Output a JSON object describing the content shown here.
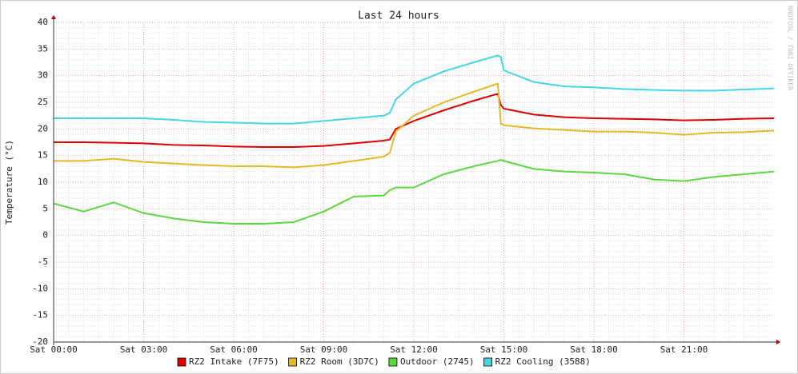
{
  "chart_data": {
    "type": "line",
    "title": "Last 24 hours",
    "y_label": "Temperature (°C)",
    "watermark": "RRDTOOL / TOBI OETIKER",
    "x": [
      0,
      1,
      2,
      3,
      4,
      5,
      6,
      7,
      8,
      9,
      10,
      11,
      11.2,
      11.4,
      12,
      13,
      14,
      14.8,
      14.9,
      15,
      16,
      17,
      18,
      19,
      20,
      21,
      22,
      23,
      24
    ],
    "xlim": [
      0,
      24
    ],
    "xticks": [
      {
        "value": 0,
        "label": "Sat 00:00"
      },
      {
        "value": 3,
        "label": "Sat 03:00"
      },
      {
        "value": 6,
        "label": "Sat 06:00"
      },
      {
        "value": 9,
        "label": "Sat 09:00"
      },
      {
        "value": 12,
        "label": "Sat 12:00"
      },
      {
        "value": 15,
        "label": "Sat 15:00"
      },
      {
        "value": 18,
        "label": "Sat 18:00"
      },
      {
        "value": 21,
        "label": "Sat 21:00"
      }
    ],
    "ylim": [
      -20,
      40
    ],
    "yticks": [
      -20,
      -15,
      -10,
      -5,
      0,
      5,
      10,
      15,
      20,
      25,
      30,
      35,
      40
    ],
    "grid": true,
    "legend": "bottom",
    "series": [
      {
        "name": "RZ2 Intake (7F75)",
        "color": "#e00000",
        "values": [
          17.5,
          17.5,
          17.4,
          17.3,
          17,
          16.9,
          16.7,
          16.6,
          16.6,
          16.8,
          17.3,
          17.8,
          18,
          20,
          21.5,
          23.5,
          25.3,
          26.6,
          24.5,
          23.8,
          22.7,
          22.2,
          22,
          21.9,
          21.8,
          21.6,
          21.7,
          21.9,
          22
        ]
      },
      {
        "name": "RZ2 Room (3D7C)",
        "color": "#e5b826",
        "values": [
          14,
          14,
          14.4,
          13.8,
          13.5,
          13.2,
          13,
          13,
          12.8,
          13.2,
          14,
          14.8,
          15.5,
          19.5,
          22.5,
          25,
          27,
          28.5,
          21,
          20.7,
          20.1,
          19.8,
          19.5,
          19.5,
          19.3,
          18.9,
          19.3,
          19.4,
          19.7
        ]
      },
      {
        "name": "Outdoor (2745)",
        "color": "#5ad840",
        "values": [
          6,
          4.5,
          6.2,
          4.2,
          3.2,
          2.5,
          2.2,
          2.2,
          2.5,
          4.5,
          7.3,
          7.5,
          8.5,
          9,
          9,
          11.5,
          13,
          14,
          14.2,
          14,
          12.5,
          12,
          11.8,
          11.5,
          10.5,
          10.2,
          11,
          11.5,
          12
        ]
      },
      {
        "name": "RZ2 Cooling (3588)",
        "color": "#44d6e4",
        "values": [
          22,
          22,
          22,
          22,
          21.7,
          21.3,
          21.2,
          21,
          21,
          21.5,
          22,
          22.5,
          23,
          25.5,
          28.5,
          30.8,
          32.5,
          33.8,
          33.5,
          31,
          28.8,
          28,
          27.8,
          27.5,
          27.3,
          27.2,
          27.2,
          27.4,
          27.6
        ]
      }
    ]
  }
}
